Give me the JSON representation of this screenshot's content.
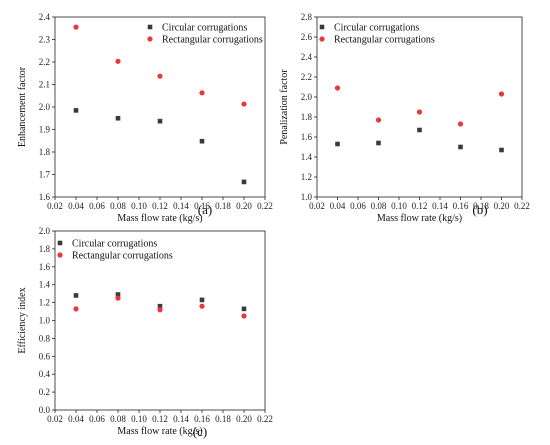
{
  "colors": {
    "circular": "#3a3a3a",
    "rectangular": "#e8383d",
    "axis": "#222222"
  },
  "chart_data": [
    {
      "type": "scatter",
      "panel_label": "(a)",
      "xlabel": "Mass flow rate (kg/s)",
      "ylabel": "Enhancement factor",
      "xlim": [
        0.02,
        0.22
      ],
      "ylim": [
        1.6,
        2.4
      ],
      "xticks": [
        "0.02",
        "0.04",
        "0.06",
        "0.08",
        "0.10",
        "0.12",
        "0.14",
        "0.16",
        "0.18",
        "0.20",
        "0.22"
      ],
      "yticks": [
        "1.6",
        "1.7",
        "1.8",
        "1.9",
        "2.0",
        "2.1",
        "2.2",
        "2.3",
        "2.4"
      ],
      "legend_position": "top-right",
      "series": [
        {
          "name": "Circular corrugations",
          "marker": "square",
          "color": "#3a3a3a",
          "x": [
            0.04,
            0.08,
            0.12,
            0.16,
            0.2
          ],
          "y": [
            1.985,
            1.95,
            1.937,
            1.848,
            1.667
          ]
        },
        {
          "name": "Rectangular corrugations",
          "marker": "circle",
          "color": "#e8383d",
          "x": [
            0.04,
            0.08,
            0.12,
            0.16,
            0.2
          ],
          "y": [
            2.355,
            2.203,
            2.137,
            2.063,
            2.013
          ]
        }
      ]
    },
    {
      "type": "scatter",
      "panel_label": "(b)",
      "xlabel": "Mass flow rate (kg/s)",
      "ylabel": "Penalization factor",
      "xlim": [
        0.02,
        0.22
      ],
      "ylim": [
        1.0,
        2.8
      ],
      "xticks": [
        "0.02",
        "0.04",
        "0.06",
        "0.08",
        "0.10",
        "0.12",
        "0.14",
        "0.16",
        "0.18",
        "0.20",
        "0.22"
      ],
      "yticks": [
        "1.0",
        "1.2",
        "1.4",
        "1.6",
        "1.8",
        "2.0",
        "2.2",
        "2.4",
        "2.6",
        "2.8"
      ],
      "legend_position": "top-left",
      "series": [
        {
          "name": "Circular corrugations",
          "marker": "square",
          "color": "#3a3a3a",
          "x": [
            0.04,
            0.08,
            0.12,
            0.16,
            0.2
          ],
          "y": [
            1.53,
            1.54,
            1.67,
            1.5,
            1.47
          ]
        },
        {
          "name": "Rectangular corrugations",
          "marker": "circle",
          "color": "#e8383d",
          "x": [
            0.04,
            0.08,
            0.12,
            0.16,
            0.2
          ],
          "y": [
            2.09,
            1.77,
            1.85,
            1.73,
            2.03
          ]
        }
      ]
    },
    {
      "type": "scatter",
      "panel_label": "(c)",
      "xlabel": "Mass flow rate (kg/s)",
      "ylabel": "Efficiency index",
      "xlim": [
        0.02,
        0.22
      ],
      "ylim": [
        0.0,
        2.0
      ],
      "xticks": [
        "0.02",
        "0.04",
        "0.06",
        "0.08",
        "0.10",
        "0.12",
        "0.14",
        "0.16",
        "0.18",
        "0.20",
        "0.22"
      ],
      "yticks": [
        "0.0",
        "0.2",
        "0.4",
        "0.6",
        "0.8",
        "1.0",
        "1.2",
        "1.4",
        "1.6",
        "1.8",
        "2.0"
      ],
      "legend_position": "top-left",
      "series": [
        {
          "name": "Circular corrugations",
          "marker": "square",
          "color": "#3a3a3a",
          "x": [
            0.04,
            0.08,
            0.12,
            0.16,
            0.2
          ],
          "y": [
            1.28,
            1.29,
            1.16,
            1.23,
            1.13
          ]
        },
        {
          "name": "Rectangular corrugations",
          "marker": "circle",
          "color": "#e8383d",
          "x": [
            0.04,
            0.08,
            0.12,
            0.16,
            0.2
          ],
          "y": [
            1.13,
            1.25,
            1.12,
            1.16,
            1.05
          ]
        }
      ]
    }
  ]
}
